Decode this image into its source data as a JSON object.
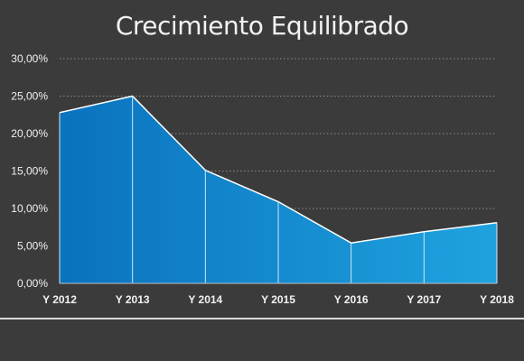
{
  "chart_data": {
    "type": "area",
    "title": "Crecimiento Equilibrado",
    "xlabel": "",
    "ylabel": "",
    "categories": [
      "Y 2012",
      "Y 2013",
      "Y 2014",
      "Y 2015",
      "Y 2016",
      "Y 2017",
      "Y 2018"
    ],
    "values": [
      0.228,
      0.25,
      0.151,
      0.109,
      0.054,
      0.069,
      0.081
    ],
    "ylim": [
      0,
      0.3
    ],
    "yticks": [
      "0,00%",
      "5,00%",
      "10,00%",
      "15,00%",
      "20,00%",
      "25,00%",
      "30,00%"
    ],
    "grid": true,
    "colors": {
      "background": "#3b3b3b",
      "fill_start": "#0a72be",
      "fill_end": "#1fa3df",
      "line": "#ffffff",
      "grid": "#8c8c8c",
      "text": "#f2f2f2"
    }
  }
}
